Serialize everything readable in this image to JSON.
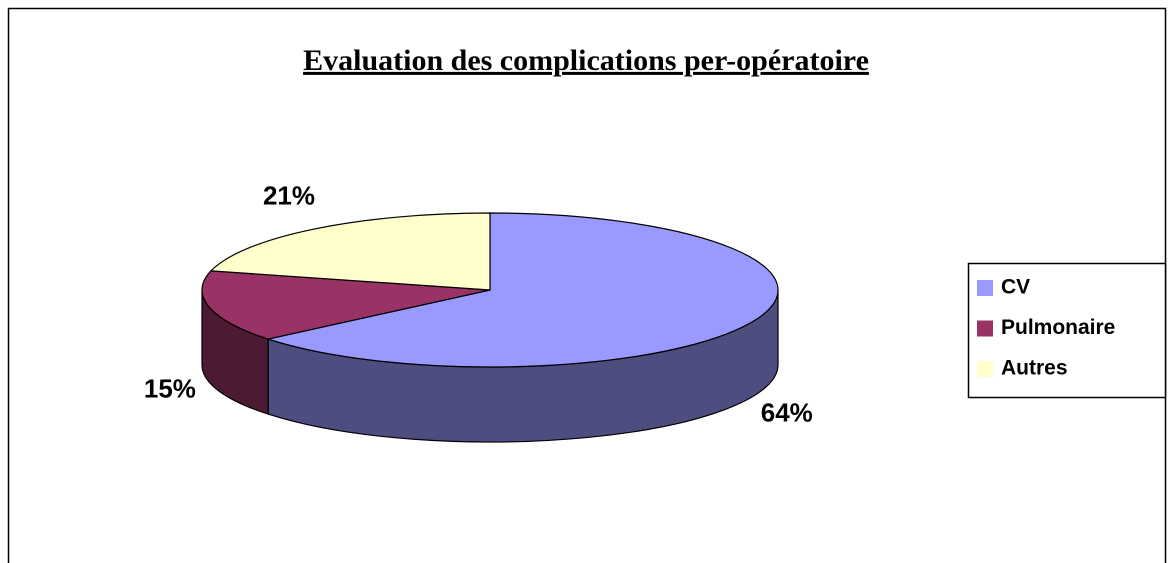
{
  "chart_data": {
    "type": "pie3d",
    "title": "Evaluation des complications per-opératoire",
    "categories": [
      "CV",
      "Pulmonaire",
      "Autres"
    ],
    "values": [
      64,
      15,
      21
    ],
    "value_labels": [
      "64%",
      "15%",
      "21%"
    ],
    "colors": [
      "#9999ff",
      "#993366",
      "#ffffcc"
    ],
    "legend": "right"
  }
}
